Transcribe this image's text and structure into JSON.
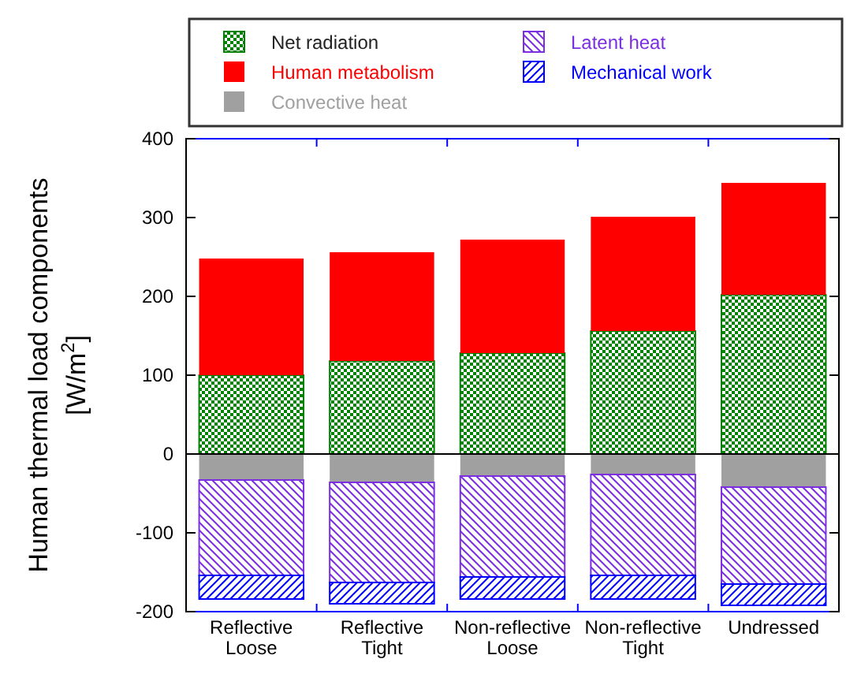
{
  "chart_data": {
    "type": "bar",
    "stacked": true,
    "ylabel": "Human thermal load components [W/m$^{2}$]",
    "categories": [
      "Reflective Loose",
      "Reflective Tight",
      "Non-reflective Loose",
      "Non-reflective Tight",
      "Undressed"
    ],
    "series": [
      {
        "name": "Net radiation",
        "color": "#008000",
        "values": [
          100,
          118,
          128,
          156,
          202
        ]
      },
      {
        "name": "Human metabolism",
        "color": "#ff0000",
        "values": [
          148,
          138,
          144,
          145,
          142
        ]
      },
      {
        "name": "Convective heat",
        "color": "#a0a0a0",
        "values": [
          -33,
          -36,
          -28,
          -26,
          -42
        ]
      },
      {
        "name": "Latent heat",
        "color": "#7b2fe0",
        "values": [
          -121,
          -127,
          -128,
          -128,
          -123
        ]
      },
      {
        "name": "Mechanical work",
        "color": "#0000ff",
        "values": [
          -30,
          -27,
          -28,
          -30,
          -27
        ]
      }
    ],
    "ylim": [
      -200,
      400
    ],
    "yticks": [
      -200,
      -100,
      0,
      100,
      200,
      300,
      400
    ],
    "ref_lines": [
      {
        "axis": "y",
        "value": 0,
        "color": "#000000"
      }
    ],
    "legend": "top"
  }
}
